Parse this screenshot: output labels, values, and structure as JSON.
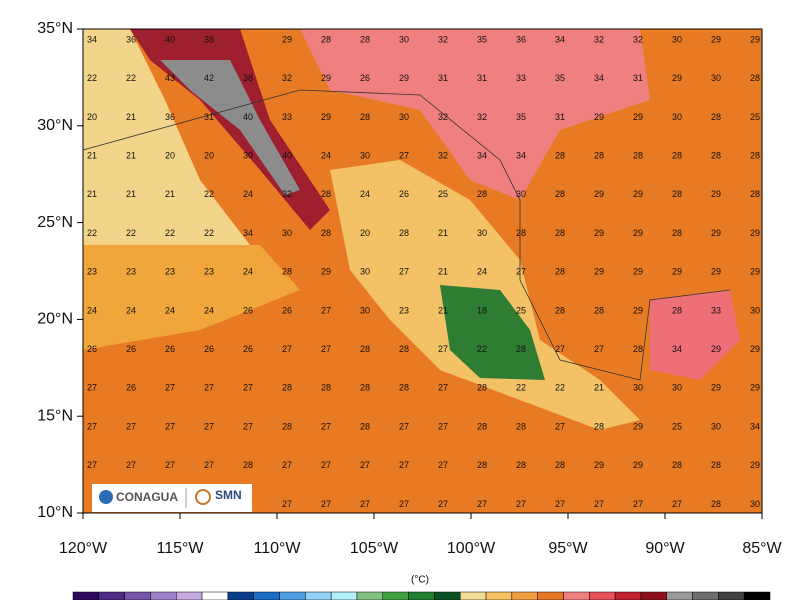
{
  "map": {
    "unit": "(°C)",
    "lon_ticks": [
      {
        "value": -120,
        "label": "120°W"
      },
      {
        "value": -115,
        "label": "115°W"
      },
      {
        "value": -110,
        "label": "110°W"
      },
      {
        "value": -105,
        "label": "105°W"
      },
      {
        "value": -100,
        "label": "100°W"
      },
      {
        "value": -95,
        "label": "95°W"
      },
      {
        "value": -90,
        "label": "90°W"
      },
      {
        "value": -85,
        "label": "85°W"
      }
    ],
    "lat_ticks": [
      {
        "value": 35,
        "label": "35°N"
      },
      {
        "value": 30,
        "label": "30°N"
      },
      {
        "value": 25,
        "label": "25°N"
      },
      {
        "value": 20,
        "label": "20°N"
      },
      {
        "value": 15,
        "label": "15°N"
      },
      {
        "value": 10,
        "label": "10°N"
      }
    ],
    "grid": [
      [
        34,
        36,
        40,
        38,
        null,
        29,
        28,
        28,
        30,
        32,
        35,
        36,
        34,
        32,
        32,
        30,
        29,
        29
      ],
      [
        22,
        22,
        43,
        42,
        38,
        32,
        29,
        26,
        29,
        31,
        31,
        33,
        35,
        34,
        31,
        29,
        30,
        28
      ],
      [
        20,
        21,
        36,
        31,
        40,
        33,
        29,
        28,
        30,
        32,
        32,
        35,
        31,
        29,
        29,
        30,
        28,
        25
      ],
      [
        21,
        21,
        20,
        20,
        30,
        40,
        24,
        30,
        27,
        32,
        34,
        34,
        28,
        28,
        28,
        28,
        28,
        28
      ],
      [
        21,
        21,
        21,
        22,
        24,
        32,
        28,
        24,
        26,
        25,
        28,
        30,
        28,
        29,
        29,
        28,
        29,
        28
      ],
      [
        22,
        22,
        22,
        22,
        34,
        30,
        28,
        20,
        28,
        21,
        30,
        28,
        28,
        29,
        29,
        28,
        29,
        29
      ],
      [
        23,
        23,
        23,
        23,
        24,
        28,
        29,
        30,
        27,
        21,
        24,
        27,
        28,
        29,
        29,
        29,
        29,
        29
      ],
      [
        24,
        24,
        24,
        24,
        26,
        26,
        27,
        30,
        23,
        21,
        18,
        25,
        28,
        28,
        29,
        28,
        33,
        30
      ],
      [
        26,
        26,
        26,
        26,
        26,
        27,
        27,
        28,
        28,
        27,
        22,
        28,
        27,
        27,
        28,
        34,
        29,
        29
      ],
      [
        27,
        26,
        27,
        27,
        27,
        28,
        28,
        28,
        28,
        27,
        28,
        22,
        22,
        21,
        30,
        30,
        29,
        29
      ],
      [
        27,
        27,
        27,
        27,
        27,
        28,
        27,
        28,
        27,
        27,
        28,
        28,
        27,
        28,
        29,
        25,
        30,
        34
      ],
      [
        27,
        27,
        27,
        27,
        28,
        27,
        27,
        27,
        27,
        27,
        28,
        28,
        28,
        29,
        29,
        28,
        28,
        29
      ],
      [
        null,
        null,
        null,
        null,
        null,
        27,
        27,
        27,
        27,
        27,
        27,
        27,
        27,
        27,
        27,
        27,
        28,
        30
      ]
    ]
  },
  "logos": {
    "left": "CONAGUA",
    "right": "SMN"
  }
}
